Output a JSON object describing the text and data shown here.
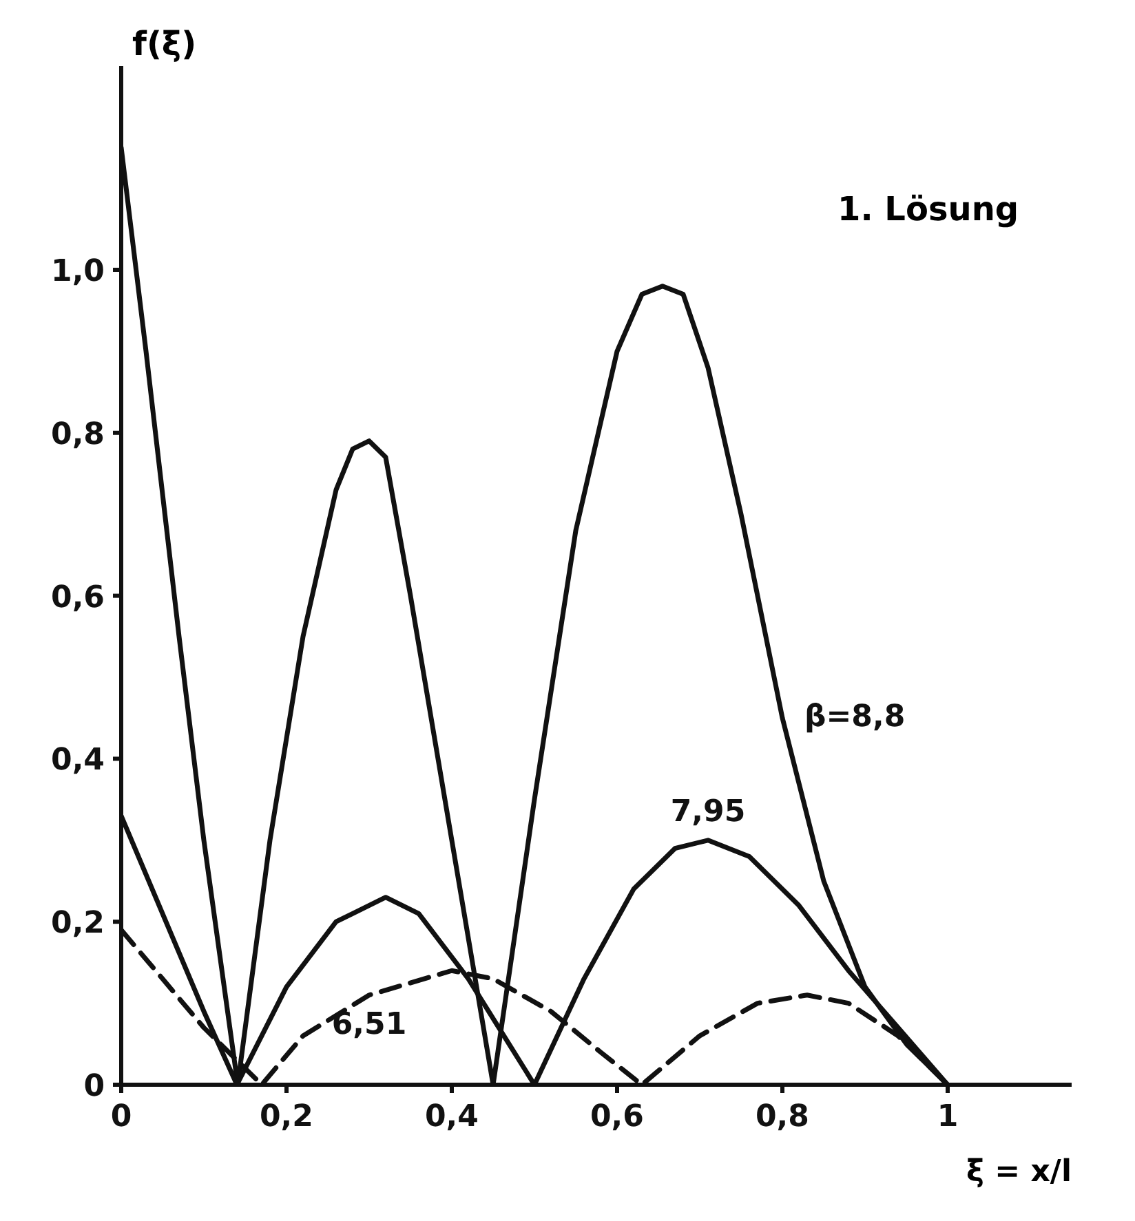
{
  "chart_data": {
    "type": "line",
    "ylabel": "f(ξ)",
    "xlabel": "ξ = x/l",
    "annotations": [
      "1. Lösung"
    ],
    "xlim": [
      0,
      1.15
    ],
    "ylim": [
      0,
      1.25
    ],
    "xticks": [
      0,
      {
        "value": 0.2,
        "label": "0,2"
      },
      {
        "value": 0.4,
        "label": "0,4"
      },
      {
        "value": 0.6,
        "label": "0,6"
      },
      {
        "value": 0.8,
        "label": "0,8"
      },
      1
    ],
    "yticks": [
      0,
      {
        "value": 0.2,
        "label": "0,2"
      },
      {
        "value": 0.4,
        "label": "0,4"
      },
      {
        "value": 0.6,
        "label": "0,6"
      },
      {
        "value": 0.8,
        "label": "0,8"
      },
      {
        "value": 1.0,
        "label": "1,0"
      }
    ],
    "grid": false,
    "legend": false,
    "marker": "none",
    "series": [
      {
        "name": "β=8,8",
        "color": "#111111",
        "line_style": "solid",
        "x": [
          0,
          0.03,
          0.07,
          0.1,
          0.141,
          0.18,
          0.22,
          0.26,
          0.28,
          0.3,
          0.32,
          0.35,
          0.4,
          0.45,
          0.5,
          0.55,
          0.6,
          0.63,
          0.655,
          0.68,
          0.71,
          0.75,
          0.8,
          0.85,
          0.9,
          0.95,
          1
        ],
        "values": [
          1.15,
          0.9,
          0.55,
          0.3,
          0,
          0.3,
          0.55,
          0.73,
          0.78,
          0.79,
          0.77,
          0.6,
          0.3,
          0,
          0.35,
          0.68,
          0.9,
          0.97,
          0.98,
          0.97,
          0.88,
          0.7,
          0.45,
          0.25,
          0.12,
          0.05,
          0
        ]
      },
      {
        "name": "7,95",
        "color": "#111111",
        "line_style": "solid",
        "x": [
          0,
          0.05,
          0.1,
          0.14,
          0.2,
          0.26,
          0.32,
          0.36,
          0.42,
          0.5,
          0.56,
          0.62,
          0.67,
          0.71,
          0.76,
          0.82,
          0.88,
          0.94,
          1
        ],
        "values": [
          0.33,
          0.21,
          0.09,
          0,
          0.12,
          0.2,
          0.23,
          0.21,
          0.13,
          0,
          0.13,
          0.24,
          0.29,
          0.3,
          0.28,
          0.22,
          0.14,
          0.07,
          0
        ]
      },
      {
        "name": "6,51",
        "color": "#111111",
        "line_style": "dashed",
        "x": [
          0,
          0.05,
          0.1,
          0.17,
          0.22,
          0.3,
          0.4,
          0.45,
          0.52,
          0.58,
          0.63,
          0.7,
          0.77,
          0.83,
          0.88,
          0.94,
          1
        ],
        "values": [
          0.19,
          0.13,
          0.07,
          0,
          0.06,
          0.11,
          0.14,
          0.13,
          0.09,
          0.04,
          0,
          0.06,
          0.1,
          0.11,
          0.1,
          0.06,
          0
        ]
      }
    ]
  }
}
